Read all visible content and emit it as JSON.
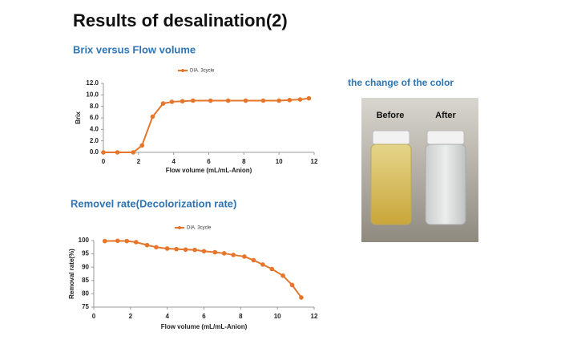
{
  "title": "Results of desalination(2)",
  "photo": {
    "title": "the change of the color",
    "labels": [
      "Before",
      "After"
    ]
  },
  "chart_data": [
    {
      "type": "line",
      "title": "Brix versus Flow volume",
      "x_label": "Flow volume  (mL/mL-Anion)",
      "y_label": "Brix",
      "xlim": [
        0,
        12
      ],
      "xticks": [
        0,
        2,
        4,
        6,
        8,
        10,
        12
      ],
      "ylim": [
        0,
        12
      ],
      "yticks": [
        {
          "value": 0,
          "label": "0.0"
        },
        {
          "value": 2,
          "label": "2.0"
        },
        {
          "value": 4,
          "label": "4.0"
        },
        {
          "value": 6,
          "label": "6.0"
        },
        {
          "value": 8,
          "label": "8.0"
        },
        {
          "value": 10,
          "label": "10.0"
        },
        {
          "value": 12,
          "label": "12.0"
        }
      ],
      "x": [
        0,
        0.8,
        1.7,
        2.2,
        2.8,
        3.4,
        3.9,
        4.5,
        5.1,
        6.1,
        7.1,
        8.1,
        9.1,
        10.0,
        10.6,
        11.2,
        11.7
      ],
      "series": [
        {
          "name": "DIA. 3cycle",
          "color": "#e5762b",
          "values": [
            0,
            0,
            0,
            1.2,
            6.2,
            8.5,
            8.8,
            8.9,
            9.0,
            9.0,
            9.0,
            9.0,
            9.0,
            9.0,
            9.1,
            9.2,
            9.4
          ]
        }
      ]
    },
    {
      "type": "line",
      "title": "Removel rate(Decolorization rate)",
      "x_label": "Flow volume  (mL/mL-Anion)",
      "y_label": "Removal rate(%)",
      "xlim": [
        0,
        12
      ],
      "xticks": [
        0,
        2,
        4,
        6,
        8,
        10,
        12
      ],
      "ylim": [
        75,
        100
      ],
      "yticks": [
        75,
        80,
        85,
        90,
        95,
        100
      ],
      "x": [
        0.6,
        1.3,
        1.8,
        2.3,
        2.9,
        3.4,
        4.0,
        4.5,
        5.0,
        5.5,
        6.0,
        6.6,
        7.1,
        7.6,
        8.2,
        8.7,
        9.2,
        9.7,
        10.3,
        10.8,
        11.3
      ],
      "series": [
        {
          "name": "DIA. 3cycle",
          "color": "#e5762b",
          "values": [
            99.8,
            99.9,
            99.8,
            99.4,
            98.3,
            97.5,
            97.0,
            96.8,
            96.6,
            96.5,
            96.0,
            95.6,
            95.2,
            94.6,
            94.0,
            92.6,
            91.0,
            89.3,
            86.8,
            83.3,
            78.6
          ]
        }
      ]
    }
  ]
}
